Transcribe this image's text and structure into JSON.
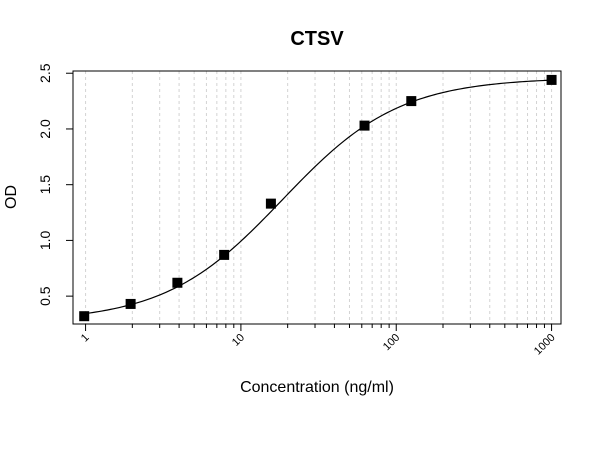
{
  "chart_data": {
    "type": "scatter",
    "title": "CTSV",
    "xlabel": "Concentration (ng/ml)",
    "ylabel": "OD",
    "x_scale": "log",
    "xlim": [
      0.83,
      1150
    ],
    "ylim": [
      0.25,
      2.52
    ],
    "x_ticks": [
      1,
      10,
      100,
      1000
    ],
    "x_tick_labels": [
      "1",
      "10",
      "100",
      "1000"
    ],
    "y_ticks": [
      0.5,
      1.0,
      1.5,
      2.0,
      2.5
    ],
    "y_tick_labels": [
      "0.5",
      "1.0",
      "1.5",
      "2.0",
      "2.5"
    ],
    "grid": "vertical-dashed",
    "series": [
      {
        "points": [
          {
            "x": 0.98,
            "y": 0.32
          },
          {
            "x": 1.95,
            "y": 0.43
          },
          {
            "x": 3.9,
            "y": 0.62
          },
          {
            "x": 7.8,
            "y": 0.87
          },
          {
            "x": 15.6,
            "y": 1.33
          },
          {
            "x": 62.5,
            "y": 2.03
          },
          {
            "x": 125,
            "y": 2.25
          },
          {
            "x": 1000,
            "y": 2.44
          }
        ]
      }
    ],
    "fit_curve": {
      "type": "4PL",
      "bottom": 0.27,
      "top": 2.46,
      "ec50": 18.5,
      "hill": 1.15
    }
  }
}
